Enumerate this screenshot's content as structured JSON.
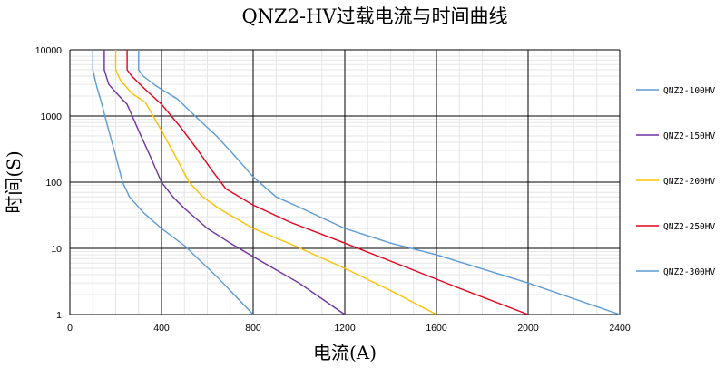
{
  "chart_data": {
    "type": "line",
    "title": "QNZ2-HV过载电流与时间曲线",
    "xlabel": "电流(A)",
    "ylabel": "时间(S)",
    "xlim": [
      0,
      2400
    ],
    "ylim": [
      1,
      10000
    ],
    "yscale": "log",
    "xticks": [
      "0",
      "400",
      "800",
      "1200",
      "1600",
      "2000",
      "2400"
    ],
    "xtick_values": [
      0,
      400,
      800,
      1200,
      1600,
      2000,
      2400
    ],
    "yticks": [
      "1",
      "10",
      "100",
      "1000",
      "10000"
    ],
    "ytick_values": [
      1,
      10,
      100,
      1000,
      10000
    ],
    "legend_position": "right",
    "series": [
      {
        "name": "QNZ2-100HV",
        "color": "#5b9bd5",
        "points": [
          [
            100,
            10000
          ],
          [
            100,
            5000
          ],
          [
            115,
            3000
          ],
          [
            140,
            1500
          ],
          [
            170,
            600
          ],
          [
            200,
            250
          ],
          [
            230,
            100
          ],
          [
            260,
            60
          ],
          [
            320,
            35
          ],
          [
            400,
            20
          ],
          [
            500,
            11
          ],
          [
            650,
            3.5
          ],
          [
            800,
            1
          ]
        ]
      },
      {
        "name": "QNZ2-150HV",
        "color": "#7030a0",
        "points": [
          [
            150,
            10000
          ],
          [
            150,
            5000
          ],
          [
            170,
            3000
          ],
          [
            210,
            2100
          ],
          [
            250,
            1500
          ],
          [
            300,
            600
          ],
          [
            350,
            250
          ],
          [
            400,
            100
          ],
          [
            450,
            60
          ],
          [
            500,
            40
          ],
          [
            600,
            20
          ],
          [
            700,
            12
          ],
          [
            800,
            7.5
          ],
          [
            1000,
            3
          ],
          [
            1200,
            1
          ]
        ]
      },
      {
        "name": "QNZ2-200HV",
        "color": "#ffc000",
        "points": [
          [
            200,
            10000
          ],
          [
            200,
            5000
          ],
          [
            220,
            3500
          ],
          [
            270,
            2200
          ],
          [
            330,
            1600
          ],
          [
            400,
            600
          ],
          [
            460,
            250
          ],
          [
            520,
            100
          ],
          [
            580,
            60
          ],
          [
            650,
            40
          ],
          [
            800,
            20
          ],
          [
            980,
            11
          ],
          [
            1200,
            5
          ],
          [
            1400,
            2.3
          ],
          [
            1600,
            1
          ]
        ]
      },
      {
        "name": "QNZ2-250HV",
        "color": "#e8001c",
        "points": [
          [
            250,
            10000
          ],
          [
            250,
            5000
          ],
          [
            270,
            4000
          ],
          [
            320,
            2700
          ],
          [
            400,
            1500
          ],
          [
            480,
            700
          ],
          [
            560,
            300
          ],
          [
            620,
            150
          ],
          [
            680,
            80
          ],
          [
            800,
            45
          ],
          [
            960,
            25
          ],
          [
            1200,
            12
          ],
          [
            1450,
            5.5
          ],
          [
            1700,
            2.5
          ],
          [
            2000,
            1
          ]
        ]
      },
      {
        "name": "QNZ2-300HV",
        "color": "#5b9bd5",
        "points": [
          [
            300,
            10000
          ],
          [
            300,
            5000
          ],
          [
            320,
            4000
          ],
          [
            380,
            2800
          ],
          [
            470,
            1800
          ],
          [
            560,
            900
          ],
          [
            640,
            500
          ],
          [
            720,
            250
          ],
          [
            800,
            120
          ],
          [
            900,
            60
          ],
          [
            1000,
            42
          ],
          [
            1200,
            20
          ],
          [
            1400,
            12
          ],
          [
            1600,
            8
          ],
          [
            2000,
            3
          ],
          [
            2400,
            1
          ]
        ]
      }
    ]
  }
}
